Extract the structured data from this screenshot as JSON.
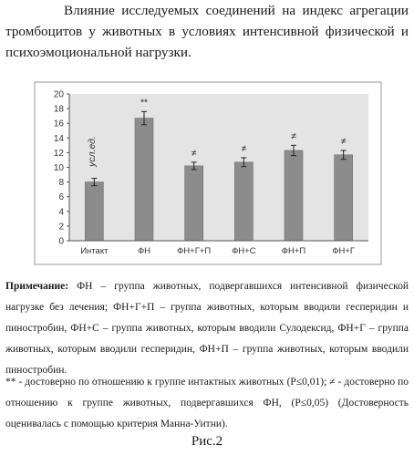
{
  "caption": {
    "text": "Влияние исследуемых соединений на индекс агрегации тромбоцитов у животных в условиях интенсивной физической и психоэмоциональной нагрузки."
  },
  "chart_data": {
    "type": "bar",
    "title": "",
    "ylabel": "усл.ед.",
    "xlabel": "",
    "ylim": [
      0,
      20
    ],
    "yticks": [
      0,
      2,
      4,
      6,
      8,
      10,
      12,
      14,
      16,
      18,
      20
    ],
    "grid": false,
    "categories": [
      "Интакт",
      "ФН",
      "ФН+Г+П",
      "ФН+С",
      "ФН+П",
      "ФН+Г"
    ],
    "values": [
      8.0,
      16.7,
      10.2,
      10.7,
      12.3,
      11.7
    ],
    "errors": [
      0.5,
      0.9,
      0.5,
      0.6,
      0.7,
      0.6
    ],
    "annotations": [
      "",
      "**",
      "≠",
      "≠",
      "≠",
      "≠"
    ],
    "bar_color": "#8c8c8c",
    "plot_background": "#e4e4e4"
  },
  "note": {
    "label": "Примечание:",
    "text": "ФН – группа животных, подвергавшихся интенсивной физической нагрузке без лечения; ФН+Г+П – группа животных, которым вводили гесперидин и пиностробин, ФН+С – группа животных, которым вводили Сулодексид, ФН+Г – группа животных, которым вводили гесперидин, ФН+П – группа животных, которым вводили пиностробин."
  },
  "significance": {
    "text": "** - достоверно по отношению к группе интактных животных (Р≤0,01); ≠ - достоверно по отношению к группе  животных, подвергавшихся ФН, (Р≤0,05) (Достоверность оценивалась с помощью критерия Манна-Уитни)."
  },
  "figure_label": "Рис.2"
}
